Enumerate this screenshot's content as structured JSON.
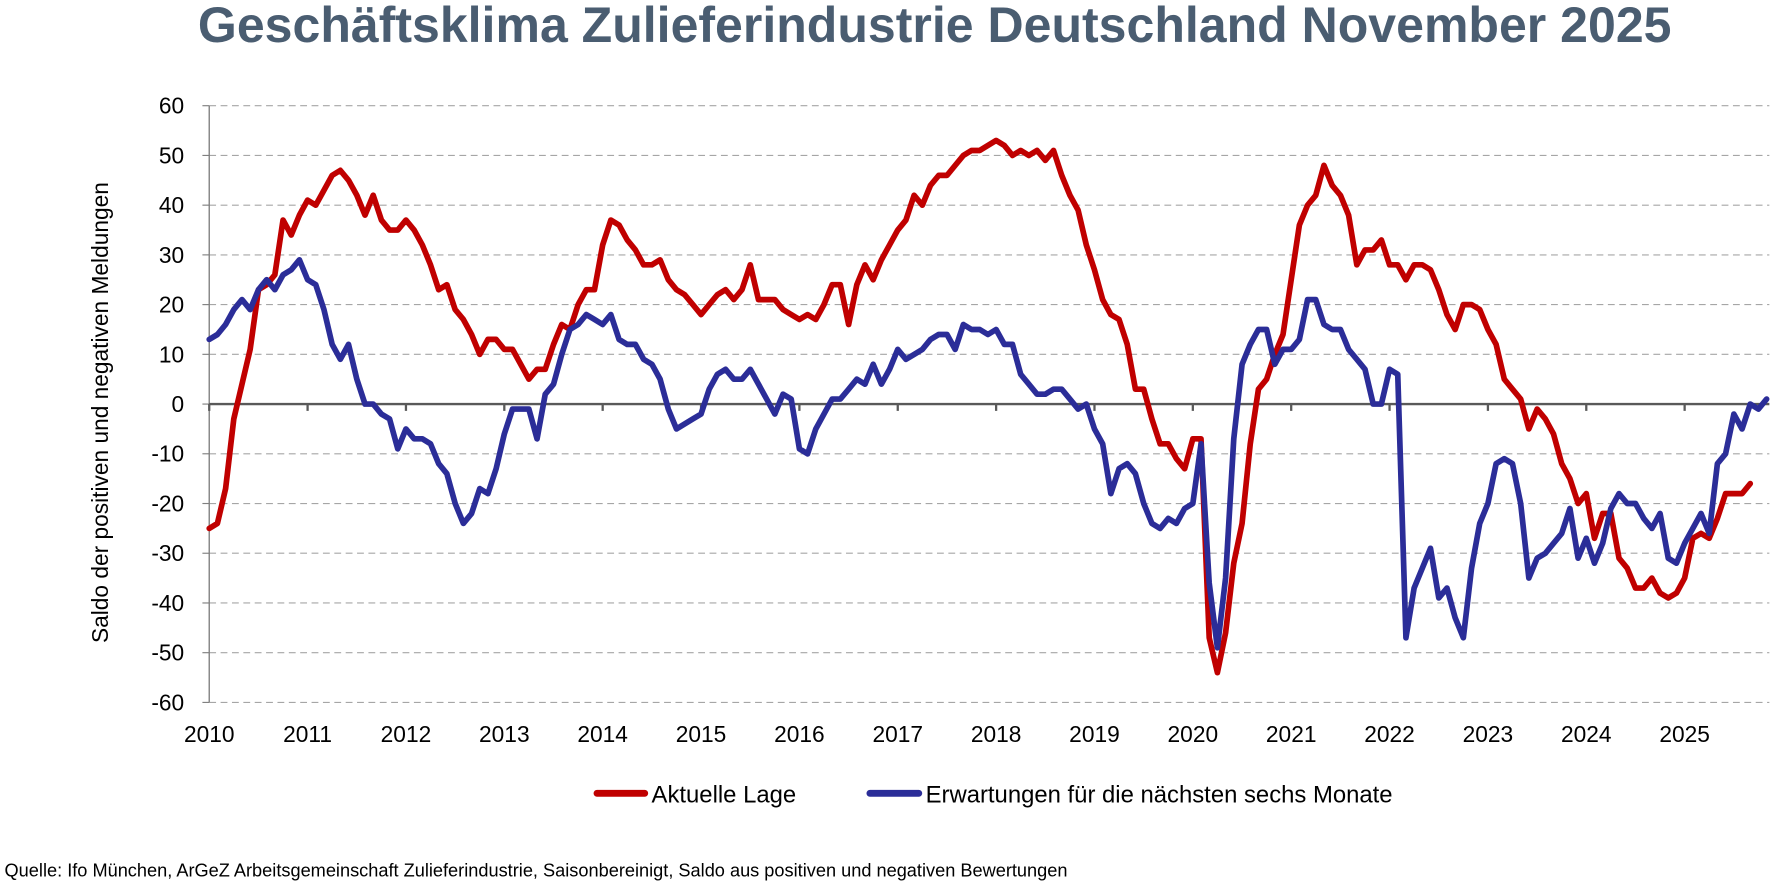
{
  "chart_data": {
    "type": "line",
    "title": "Geschäftsklima Zulieferindustrie Deutschland November 2025",
    "xlabel": "",
    "ylabel": "Saldo der positiven und negativen Meldungen",
    "ylim": [
      -60,
      60
    ],
    "yticks": [
      60,
      50,
      40,
      30,
      20,
      10,
      0,
      -10,
      -20,
      -30,
      -40,
      -50,
      -60
    ],
    "ytick_labels": [
      "60",
      "50",
      "40",
      "30",
      "20",
      "10",
      "0",
      "-10",
      "-20",
      "-30",
      "-40",
      "-50",
      "-60"
    ],
    "x_start": "2010-01",
    "x_end": "2025-11",
    "frequency": "monthly",
    "xtick_labels": [
      "2010",
      "2011",
      "2012",
      "2013",
      "2014",
      "2015",
      "2016",
      "2017",
      "2018",
      "2019",
      "2020",
      "2021",
      "2022",
      "2023",
      "2024",
      "2025"
    ],
    "grid": true,
    "legend": "bottom",
    "series": [
      {
        "name": "Aktuelle Lage",
        "color": "#c00000",
        "values": [
          -25,
          -24,
          -17,
          -3,
          4,
          11,
          23,
          24,
          26,
          37,
          34,
          38,
          41,
          40,
          43,
          46,
          47,
          45,
          42,
          38,
          42,
          37,
          35,
          35,
          37,
          35,
          32,
          28,
          23,
          24,
          19,
          17,
          14,
          10,
          13,
          13,
          11,
          11,
          8,
          5,
          7,
          7,
          12,
          16,
          15,
          20,
          23,
          23,
          32,
          37,
          36,
          33,
          31,
          28,
          28,
          29,
          25,
          23,
          22,
          20,
          18,
          20,
          22,
          23,
          21,
          23,
          28,
          21,
          21,
          21,
          19,
          18,
          17,
          18,
          17,
          20,
          24,
          24,
          16,
          24,
          28,
          25,
          29,
          32,
          35,
          37,
          42,
          40,
          44,
          46,
          46,
          48,
          50,
          51,
          51,
          52,
          53,
          52,
          50,
          51,
          50,
          51,
          49,
          51,
          46,
          42,
          39,
          32,
          27,
          21,
          18,
          17,
          12,
          3,
          3,
          -3,
          -8,
          -8,
          -11,
          -13,
          -7,
          -7,
          -47,
          -54,
          -46,
          -32,
          -24,
          -8,
          3,
          5,
          10,
          14,
          25,
          36,
          40,
          42,
          48,
          44,
          42,
          38,
          28,
          31,
          31,
          33,
          28,
          28,
          25,
          28,
          28,
          27,
          23,
          18,
          15,
          20,
          20,
          19,
          15,
          12,
          5,
          3,
          1,
          -5,
          -1,
          -3,
          -6,
          -12,
          -15,
          -20,
          -18,
          -27,
          -22,
          -22,
          -31,
          -33,
          -37,
          -37,
          -35,
          -38,
          -39,
          -38,
          -35,
          -27,
          -26,
          -27,
          -23,
          -18,
          -18,
          -18,
          -16
        ]
      },
      {
        "name": "Erwartungen für die nächsten sechs Monate",
        "color": "#2b2d98",
        "values": [
          13,
          14,
          16,
          19,
          21,
          19,
          23,
          25,
          23,
          26,
          27,
          29,
          25,
          24,
          19,
          12,
          9,
          12,
          5,
          0,
          0,
          -2,
          -3,
          -9,
          -5,
          -7,
          -7,
          -8,
          -12,
          -14,
          -20,
          -24,
          -22,
          -17,
          -18,
          -13,
          -6,
          -1,
          -1,
          -1,
          -7,
          2,
          4,
          10,
          15,
          16,
          18,
          17,
          16,
          18,
          13,
          12,
          12,
          9,
          8,
          5,
          -1,
          -5,
          -4,
          -3,
          -2,
          3,
          6,
          7,
          5,
          5,
          7,
          4,
          1,
          -2,
          2,
          1,
          -9,
          -10,
          -5,
          -2,
          1,
          1,
          3,
          5,
          4,
          8,
          4,
          7,
          11,
          9,
          10,
          11,
          13,
          14,
          14,
          11,
          16,
          15,
          15,
          14,
          15,
          12,
          12,
          6,
          4,
          2,
          2,
          3,
          3,
          1,
          -1,
          0,
          -5,
          -8,
          -18,
          -13,
          -12,
          -14,
          -20,
          -24,
          -25,
          -23,
          -24,
          -21,
          -20,
          -8,
          -36,
          -49,
          -35,
          -7,
          8,
          12,
          15,
          15,
          8,
          11,
          11,
          13,
          21,
          21,
          16,
          15,
          15,
          11,
          9,
          7,
          0,
          0,
          7,
          6,
          -47,
          -37,
          -33,
          -29,
          -39,
          -37,
          -43,
          -47,
          -33,
          -24,
          -20,
          -12,
          -11,
          -12,
          -20,
          -35,
          -31,
          -30,
          -28,
          -26,
          -21,
          -31,
          -27,
          -32,
          -28,
          -21,
          -18,
          -20,
          -20,
          -23,
          -25,
          -22,
          -31,
          -32,
          -28,
          -25,
          -22,
          -26,
          -12,
          -10,
          -2,
          -5,
          0,
          -1,
          1
        ]
      }
    ]
  },
  "legend": {
    "items": [
      "Aktuelle Lage",
      "Erwartungen für die nächsten sechs Monate"
    ]
  },
  "footer": {
    "source": "Quelle: Ifo München, ArGeZ Arbeitsgemeinschaft Zulieferindustrie, Saisonbereinigt, Saldo aus positiven und negativen Bewertungen"
  }
}
